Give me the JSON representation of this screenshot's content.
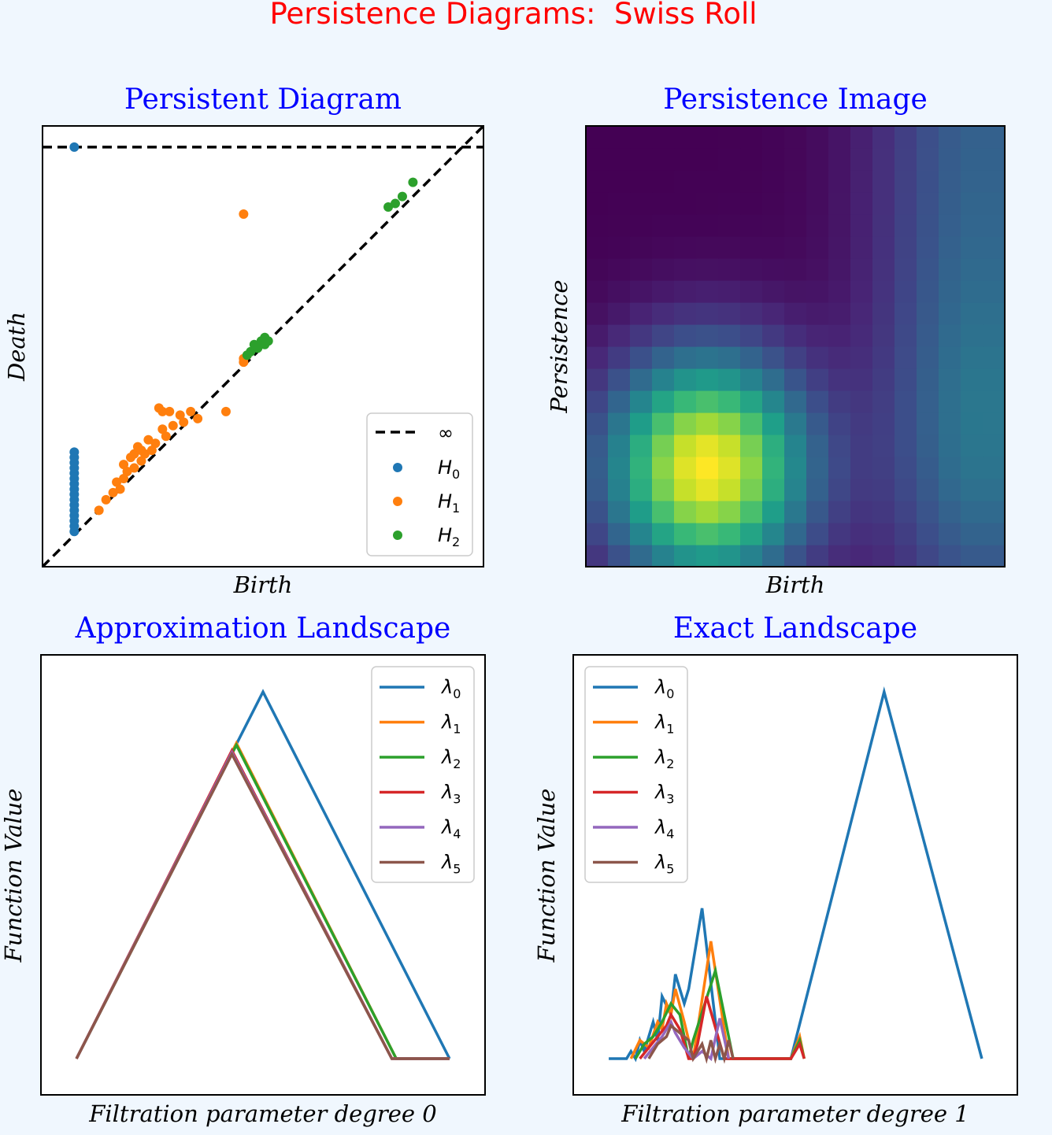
{
  "figure": {
    "suptitle": "Persistence Diagrams:  Swiss Roll",
    "colors": {
      "title": "#ff0000",
      "subtitle": "#0000ff",
      "background": "#f0f7fe",
      "h0": "#1f77b4",
      "h1": "#ff7f0e",
      "h2": "#2ca02c"
    }
  },
  "chart_data": [
    {
      "type": "scatter",
      "title": "Persistent Diagram",
      "xlabel": "Birth",
      "ylabel": "Death",
      "xlim": [
        0,
        1.25
      ],
      "ylim": [
        0,
        1.25
      ],
      "infinity_line": 1.19,
      "legend": [
        "∞",
        "H0",
        "H1",
        "H2"
      ],
      "legend_position": "lower-right",
      "series": [
        {
          "name": "H0",
          "color": "#1f77b4",
          "births": [
            0.09
          ],
          "deaths": [
            1.19,
            0.1,
            0.115,
            0.13,
            0.145,
            0.16,
            0.175,
            0.19,
            0.205,
            0.22,
            0.235,
            0.25,
            0.265,
            0.28,
            0.295,
            0.31,
            0.325
          ],
          "note": "H0 points all have birth ~0.09"
        },
        {
          "name": "H1",
          "color": "#ff7f0e",
          "points": [
            [
              0.57,
              1.0
            ],
            [
              0.16,
              0.16
            ],
            [
              0.18,
              0.19
            ],
            [
              0.2,
              0.21
            ],
            [
              0.21,
              0.24
            ],
            [
              0.22,
              0.22
            ],
            [
              0.23,
              0.25
            ],
            [
              0.23,
              0.29
            ],
            [
              0.24,
              0.27
            ],
            [
              0.25,
              0.31
            ],
            [
              0.26,
              0.28
            ],
            [
              0.26,
              0.32
            ],
            [
              0.27,
              0.34
            ],
            [
              0.28,
              0.3
            ],
            [
              0.28,
              0.33
            ],
            [
              0.29,
              0.32
            ],
            [
              0.3,
              0.36
            ],
            [
              0.31,
              0.33
            ],
            [
              0.32,
              0.35
            ],
            [
              0.33,
              0.45
            ],
            [
              0.34,
              0.44
            ],
            [
              0.34,
              0.39
            ],
            [
              0.35,
              0.37
            ],
            [
              0.36,
              0.44
            ],
            [
              0.37,
              0.4
            ],
            [
              0.39,
              0.43
            ],
            [
              0.4,
              0.41
            ],
            [
              0.42,
              0.44
            ],
            [
              0.44,
              0.42
            ],
            [
              0.52,
              0.44
            ],
            [
              0.57,
              0.58
            ],
            [
              0.57,
              0.59
            ],
            [
              0.58,
              0.6
            ]
          ]
        },
        {
          "name": "H2",
          "color": "#2ca02c",
          "points": [
            [
              0.58,
              0.6
            ],
            [
              0.59,
              0.61
            ],
            [
              0.6,
              0.63
            ],
            [
              0.61,
              0.62
            ],
            [
              0.62,
              0.64
            ],
            [
              0.63,
              0.63
            ],
            [
              0.63,
              0.65
            ],
            [
              0.64,
              0.64
            ],
            [
              0.98,
              1.02
            ],
            [
              1.0,
              1.03
            ],
            [
              1.02,
              1.05
            ],
            [
              1.05,
              1.09
            ]
          ]
        }
      ]
    },
    {
      "type": "heatmap",
      "title": "Persistence Image",
      "xlabel": "Birth",
      "ylabel": "Persistence",
      "grid": [
        19,
        20
      ],
      "peak_cell": [
        5,
        4
      ],
      "colormap": "viridis"
    },
    {
      "type": "line",
      "title": "Approximation Landscape",
      "xlabel": "Filtration parameter degree 0",
      "ylabel": "Function Value",
      "xlim": [
        0,
        1
      ],
      "ylim": [
        0,
        1
      ],
      "legend_position": "top-right",
      "series": [
        {
          "name": "λ0",
          "color": "#1f77b4",
          "x": [
            0.08,
            0.5,
            0.92
          ],
          "y": [
            0.0,
            1.0,
            0.0
          ]
        },
        {
          "name": "λ1",
          "color": "#ff7f0e",
          "x": [
            0.08,
            0.44,
            0.8,
            0.92
          ],
          "y": [
            0.0,
            0.86,
            0.0,
            0.0
          ]
        },
        {
          "name": "λ2",
          "color": "#2ca02c",
          "x": [
            0.08,
            0.44,
            0.8,
            0.92
          ],
          "y": [
            0.0,
            0.855,
            0.0,
            0.0
          ]
        },
        {
          "name": "λ3",
          "color": "#d62728",
          "x": [
            0.08,
            0.43,
            0.79,
            0.92
          ],
          "y": [
            0.0,
            0.84,
            0.0,
            0.0
          ]
        },
        {
          "name": "λ4",
          "color": "#9467bd",
          "x": [
            0.08,
            0.43,
            0.79,
            0.92
          ],
          "y": [
            0.0,
            0.835,
            0.0,
            0.0
          ]
        },
        {
          "name": "λ5",
          "color": "#8c564b",
          "x": [
            0.08,
            0.43,
            0.79,
            0.92
          ],
          "y": [
            0.0,
            0.83,
            0.0,
            0.0
          ]
        }
      ]
    },
    {
      "type": "line",
      "title": "Exact Landscape",
      "xlabel": "Filtration parameter degree 1",
      "ylabel": "Function Value",
      "xlim": [
        0,
        1
      ],
      "ylim": [
        0,
        1
      ],
      "legend_position": "top-left",
      "series": [
        {
          "name": "λ0",
          "color": "#1f77b4",
          "x": [
            0.08,
            0.12,
            0.13,
            0.14,
            0.15,
            0.16,
            0.18,
            0.19,
            0.2,
            0.22,
            0.23,
            0.25,
            0.26,
            0.29,
            0.33,
            0.37,
            0.4,
            0.49,
            0.7,
            0.92
          ],
          "y": [
            0.0,
            0.0,
            0.02,
            0.0,
            0.05,
            0.02,
            0.1,
            0.05,
            0.17,
            0.12,
            0.23,
            0.15,
            0.19,
            0.41,
            0.0,
            0.0,
            0.0,
            0.0,
            1.0,
            0.0
          ]
        },
        {
          "name": "λ1",
          "color": "#ff7f0e",
          "x": [
            0.13,
            0.15,
            0.17,
            0.19,
            0.2,
            0.21,
            0.22,
            0.23,
            0.25,
            0.27,
            0.31,
            0.35,
            0.37,
            0.49,
            0.51,
            0.52
          ],
          "y": [
            0.0,
            0.05,
            0.03,
            0.1,
            0.08,
            0.15,
            0.12,
            0.19,
            0.1,
            0.0,
            0.32,
            0.0,
            0.0,
            0.0,
            0.06,
            0.0
          ]
        },
        {
          "name": "λ2",
          "color": "#2ca02c",
          "x": [
            0.14,
            0.16,
            0.18,
            0.2,
            0.22,
            0.24,
            0.26,
            0.27,
            0.32,
            0.36,
            0.37,
            0.49,
            0.51,
            0.52
          ],
          "y": [
            0.0,
            0.04,
            0.06,
            0.1,
            0.15,
            0.12,
            0.0,
            0.05,
            0.24,
            0.0,
            0.0,
            0.0,
            0.05,
            0.0
          ]
        },
        {
          "name": "λ3",
          "color": "#d62728",
          "x": [
            0.15,
            0.17,
            0.19,
            0.21,
            0.22,
            0.24,
            0.26,
            0.27,
            0.28,
            0.3,
            0.34,
            0.37,
            0.49,
            0.51,
            0.52
          ],
          "y": [
            0.0,
            0.03,
            0.06,
            0.09,
            0.12,
            0.08,
            0.0,
            0.0,
            0.04,
            0.17,
            0.0,
            0.0,
            0.0,
            0.04,
            0.0
          ]
        },
        {
          "name": "λ4",
          "color": "#9467bd",
          "x": [
            0.16,
            0.18,
            0.2,
            0.22,
            0.23,
            0.25,
            0.27,
            0.29,
            0.31,
            0.33,
            0.35
          ],
          "y": [
            0.0,
            0.03,
            0.06,
            0.1,
            0.07,
            0.03,
            0.0,
            0.02,
            0.0,
            0.11,
            0.0
          ]
        },
        {
          "name": "λ5",
          "color": "#8c564b",
          "x": [
            0.17,
            0.19,
            0.21,
            0.22,
            0.24,
            0.26,
            0.27,
            0.29,
            0.3,
            0.31,
            0.32,
            0.33,
            0.34,
            0.35,
            0.36
          ],
          "y": [
            0.0,
            0.04,
            0.06,
            0.09,
            0.07,
            0.05,
            0.0,
            0.04,
            0.0,
            0.05,
            0.0,
            0.04,
            0.0,
            0.05,
            0.0
          ]
        }
      ]
    }
  ]
}
